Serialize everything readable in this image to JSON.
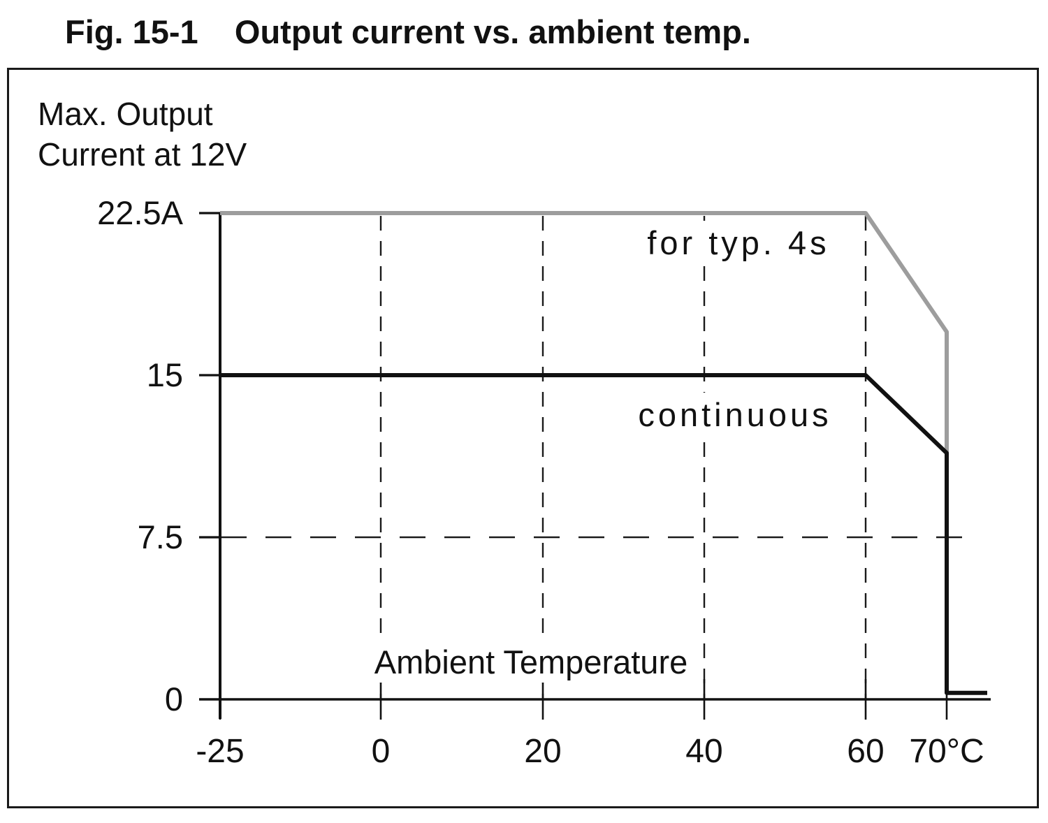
{
  "figure": {
    "title": "Fig. 15-1    Output current vs. ambient temp."
  },
  "chart_data": {
    "type": "line",
    "title": "Fig. 15-1 Output current vs. ambient temp.",
    "ylabel": "Max. Output Current at 12V",
    "ylabel_lines": [
      "Max. Output",
      "Current at 12V"
    ],
    "xlabel": "Ambient Temperature",
    "x_unit": "°C",
    "y_unit": "A",
    "xlim": [
      -25,
      75
    ],
    "ylim": [
      0,
      22.5
    ],
    "grid_style": "dashed",
    "legend_position": "inline-annotations",
    "x_ticks": [
      {
        "value": -25,
        "label": "-25"
      },
      {
        "value": 0,
        "label": "0"
      },
      {
        "value": 20,
        "label": "20"
      },
      {
        "value": 40,
        "label": "40"
      },
      {
        "value": 60,
        "label": "60"
      },
      {
        "value": 70,
        "label": "70°C"
      }
    ],
    "y_ticks": [
      {
        "value": 22.5,
        "label": "22.5A"
      },
      {
        "value": 15,
        "label": "15"
      },
      {
        "value": 7.5,
        "label": "7.5"
      },
      {
        "value": 0,
        "label": "0"
      }
    ],
    "grid_x_values": [
      0,
      20,
      40,
      60
    ],
    "grid_y_values": [
      7.5
    ],
    "series": [
      {
        "name": "for typ. 4s",
        "color": "#9d9d9d",
        "points": [
          [
            -25,
            22.5
          ],
          [
            60,
            22.5
          ],
          [
            70,
            17
          ],
          [
            70,
            11.4
          ]
        ]
      },
      {
        "name": "continuous",
        "color": "#111111",
        "points": [
          [
            -25,
            15
          ],
          [
            60,
            15
          ],
          [
            70,
            11.4
          ],
          [
            70,
            0.3
          ],
          [
            75,
            0.3
          ]
        ]
      }
    ]
  }
}
